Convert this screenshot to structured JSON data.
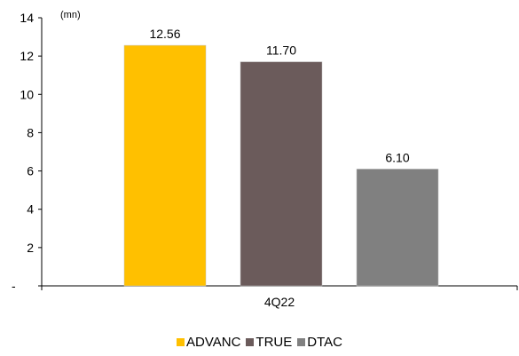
{
  "chart_data": {
    "type": "bar",
    "categories": [
      "4Q22"
    ],
    "series": [
      {
        "name": "ADVANC",
        "values": [
          12.56
        ],
        "color": "#FFC000"
      },
      {
        "name": "TRUE",
        "values": [
          11.7
        ],
        "color": "#6B5B5B"
      },
      {
        "name": "DTAC",
        "values": [
          6.1
        ],
        "color": "#808080"
      }
    ],
    "data_labels": [
      "12.56",
      "11.70",
      "6.10"
    ],
    "unit_label": "(mn)",
    "y_ticks": [
      "-",
      "2",
      "4",
      "6",
      "8",
      "10",
      "12",
      "14"
    ],
    "ylim": [
      0,
      14
    ],
    "grid": false,
    "legend_position": "bottom"
  }
}
